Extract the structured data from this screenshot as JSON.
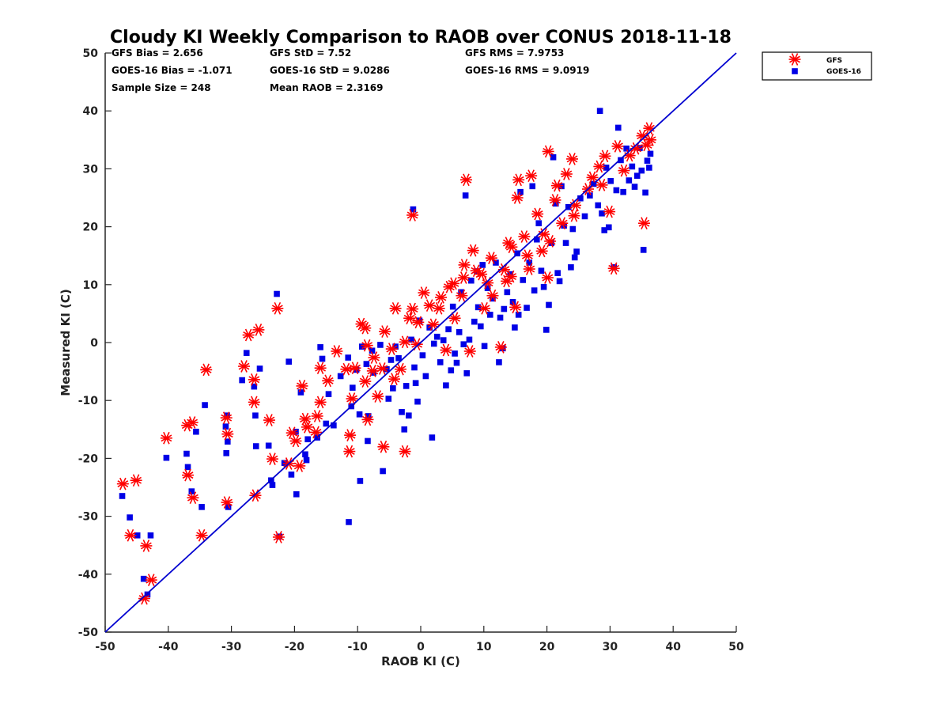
{
  "colors": {
    "gfs": "#ff0000",
    "goes": "#0000e6",
    "line": "#0000d0",
    "axis": "#262626"
  },
  "chart_data": {
    "type": "scatter",
    "title": "Cloudy KI Weekly Comparison to RAOB over CONUS 2018-11-18",
    "xlabel": "RAOB KI (C)",
    "ylabel": "Measured KI (C)",
    "xlim": [
      -50,
      50
    ],
    "ylim": [
      -50,
      50
    ],
    "xticks": [
      "-50",
      "-40",
      "-30",
      "-20",
      "-10",
      "0",
      "10",
      "20",
      "30",
      "40",
      "50"
    ],
    "yticks": [
      "50",
      "40",
      "30",
      "20",
      "10",
      "0",
      "-10",
      "-20",
      "-30",
      "-40",
      "-50"
    ],
    "grid": false,
    "legend_position": "outside-top-right",
    "stats": {
      "gfs_bias": "GFS Bias = 2.656",
      "goes_bias": "GOES-16 Bias = -1.071",
      "sample_size": "Sample Size = 248",
      "gfs_std": "GFS StD = 7.52",
      "goes_std": "GOES-16 StD = 9.0286",
      "mean_raob": "Mean RAOB = 2.3169",
      "gfs_rms": "GFS RMS = 7.9753",
      "goes_rms": "GOES-16 RMS = 9.0919"
    },
    "reference_line": {
      "x": [
        -50,
        50
      ],
      "y": [
        -50,
        50
      ]
    },
    "series": [
      {
        "name": "GFS",
        "marker": "asterisk",
        "points": [
          [
            -47.2,
            -24.4
          ],
          [
            -45.1,
            -23.8
          ],
          [
            -46,
            -33.3
          ],
          [
            -43.5,
            -35.1
          ],
          [
            -43.8,
            -44.2
          ],
          [
            -42.7,
            -41
          ],
          [
            -40.3,
            -16.5
          ],
          [
            -37,
            -14.3
          ],
          [
            -36.2,
            -13.8
          ],
          [
            -36.9,
            -22.9
          ],
          [
            -36.1,
            -26.8
          ],
          [
            -34.7,
            -33.3
          ],
          [
            -34,
            -4.7
          ],
          [
            -30.8,
            -13
          ],
          [
            -30.6,
            -15.8
          ],
          [
            -30.7,
            -27.6
          ],
          [
            -28,
            -4.1
          ],
          [
            -27.3,
            1.3
          ],
          [
            -25.7,
            2.2
          ],
          [
            -26.4,
            -6.4
          ],
          [
            -26.4,
            -10.3
          ],
          [
            -26.2,
            -26.4
          ],
          [
            -24,
            -13.4
          ],
          [
            -23.5,
            -20.1
          ],
          [
            -22.7,
            5.9
          ],
          [
            -22.5,
            -33.6
          ],
          [
            -20.9,
            -20.9
          ],
          [
            -20.4,
            -15.6
          ],
          [
            -19.8,
            -17
          ],
          [
            -19.2,
            -21.3
          ],
          [
            -18.8,
            -7.5
          ],
          [
            -18.3,
            -13.2
          ],
          [
            -18,
            -14.6
          ],
          [
            -16.6,
            -15.5
          ],
          [
            -16.4,
            -12.7
          ],
          [
            -15.9,
            -4.4
          ],
          [
            -15.9,
            -10.3
          ],
          [
            -14.7,
            -6.6
          ],
          [
            -13.3,
            -1.5
          ],
          [
            -11.8,
            -4.6
          ],
          [
            -11.2,
            -16
          ],
          [
            -11.3,
            -18.8
          ],
          [
            -10.9,
            -9.7
          ],
          [
            -10.4,
            -4.4
          ],
          [
            -9.4,
            3.2
          ],
          [
            -8.8,
            2.5
          ],
          [
            -8.5,
            -0.5
          ],
          [
            -8.8,
            -6.7
          ],
          [
            -8.4,
            -13.3
          ],
          [
            -7.6,
            -4.9
          ],
          [
            -7.4,
            -2.6
          ],
          [
            -6.8,
            -9.3
          ],
          [
            -6.1,
            -4.5
          ],
          [
            -5.9,
            -18
          ],
          [
            -5.7,
            1.9
          ],
          [
            -4.6,
            -1.1
          ],
          [
            -4,
            5.9
          ],
          [
            -4.2,
            -6.3
          ],
          [
            -3.2,
            -4.6
          ],
          [
            -2.5,
            -18.8
          ],
          [
            -2.5,
            0.1
          ],
          [
            -1.8,
            4.2
          ],
          [
            -1.3,
            5.8
          ],
          [
            -1.3,
            22
          ],
          [
            -0.6,
            -0.3
          ],
          [
            -0.4,
            3.5
          ],
          [
            0.5,
            8.6
          ],
          [
            1.4,
            6.4
          ],
          [
            2,
            3.1
          ],
          [
            2.9,
            5.9
          ],
          [
            3.2,
            7.8
          ],
          [
            4,
            -1.3
          ],
          [
            4.5,
            9.6
          ],
          [
            5.2,
            10.2
          ],
          [
            5.4,
            4.2
          ],
          [
            6.5,
            8.1
          ],
          [
            6.8,
            11.2
          ],
          [
            6.9,
            13.4
          ],
          [
            7.2,
            28.1
          ],
          [
            7.8,
            -1.5
          ],
          [
            8.3,
            15.9
          ],
          [
            8.8,
            12.4
          ],
          [
            9.6,
            11.8
          ],
          [
            10.1,
            5.9
          ],
          [
            10.6,
            10.3
          ],
          [
            11.2,
            14.6
          ],
          [
            11.4,
            8.1
          ],
          [
            12.7,
            -0.8
          ],
          [
            13.2,
            12.6
          ],
          [
            13.6,
            10.6
          ],
          [
            13.9,
            17.2
          ],
          [
            14.3,
            11.4
          ],
          [
            14.4,
            16.5
          ],
          [
            15,
            6.1
          ],
          [
            15.3,
            25
          ],
          [
            15.5,
            28.1
          ],
          [
            16.4,
            18.3
          ],
          [
            16.9,
            15
          ],
          [
            17.2,
            12.7
          ],
          [
            17.5,
            28.8
          ],
          [
            18.5,
            22.2
          ],
          [
            19.2,
            15.8
          ],
          [
            19.5,
            18.7
          ],
          [
            20.1,
            11.2
          ],
          [
            20.2,
            33
          ],
          [
            20.5,
            17.5
          ],
          [
            21.3,
            24.6
          ],
          [
            21.6,
            27.1
          ],
          [
            22.4,
            20.6
          ],
          [
            23.1,
            29.1
          ],
          [
            24,
            31.7
          ],
          [
            24.3,
            21.9
          ],
          [
            24.5,
            23.7
          ],
          [
            26.5,
            26.5
          ],
          [
            27.2,
            28.5
          ],
          [
            28.3,
            30.4
          ],
          [
            28.7,
            27.2
          ],
          [
            29.2,
            32.2
          ],
          [
            29.9,
            22.6
          ],
          [
            30.6,
            12.8
          ],
          [
            31.2,
            33.9
          ],
          [
            32.2,
            29.7
          ],
          [
            33.1,
            32.3
          ],
          [
            34.1,
            33.5
          ],
          [
            35.1,
            35.7
          ],
          [
            35.4,
            20.6
          ],
          [
            35.8,
            34.1
          ],
          [
            36.2,
            37
          ],
          [
            36.4,
            35
          ]
        ]
      },
      {
        "name": "GOES-16",
        "marker": "square",
        "points": [
          [
            -47.3,
            -26.5
          ],
          [
            -46.1,
            -30.2
          ],
          [
            -44.9,
            -33.3
          ],
          [
            -43.9,
            -40.8
          ],
          [
            -43.3,
            -43.5
          ],
          [
            -42.8,
            -33.3
          ],
          [
            -40.3,
            -19.9
          ],
          [
            -37.1,
            -19.2
          ],
          [
            -36.9,
            -21.5
          ],
          [
            -36.3,
            -25.7
          ],
          [
            -35.6,
            -15.4
          ],
          [
            -34.7,
            -28.4
          ],
          [
            -34.2,
            -10.8
          ],
          [
            -30.9,
            -14.5
          ],
          [
            -30.7,
            -12.6
          ],
          [
            -30.6,
            -17.1
          ],
          [
            -30.8,
            -19.1
          ],
          [
            -30.5,
            -28.4
          ],
          [
            -28.3,
            -6.5
          ],
          [
            -27.6,
            -1.8
          ],
          [
            -26.4,
            -7.6
          ],
          [
            -26.2,
            -12.6
          ],
          [
            -26.1,
            -17.9
          ],
          [
            -25.5,
            -4.5
          ],
          [
            -24.1,
            -17.8
          ],
          [
            -23.7,
            -23.8
          ],
          [
            -23.5,
            -24.6
          ],
          [
            -22.8,
            8.4
          ],
          [
            -22.4,
            -33.5
          ],
          [
            -21.6,
            -20.8
          ],
          [
            -20.9,
            -3.3
          ],
          [
            -20.5,
            -22.8
          ],
          [
            -19.8,
            -15.4
          ],
          [
            -19.7,
            -26.2
          ],
          [
            -19,
            -8.6
          ],
          [
            -18.3,
            -19.3
          ],
          [
            -18.1,
            -20.3
          ],
          [
            -17.9,
            -16.7
          ],
          [
            -16.4,
            -16.4
          ],
          [
            -15.9,
            -0.8
          ],
          [
            -15.6,
            -2.8
          ],
          [
            -15,
            -14
          ],
          [
            -14.6,
            -8.9
          ],
          [
            -13.8,
            -14.3
          ],
          [
            -12.7,
            -5.8
          ],
          [
            -11.5,
            -2.6
          ],
          [
            -11.4,
            -31
          ],
          [
            -11,
            -11
          ],
          [
            -10.8,
            -7.8
          ],
          [
            -10.2,
            -4.7
          ],
          [
            -9.7,
            -12.4
          ],
          [
            -9.6,
            -23.9
          ],
          [
            -9.3,
            -0.7
          ],
          [
            -8.6,
            -3.7
          ],
          [
            -8.4,
            -17
          ],
          [
            -8.3,
            -12.7
          ],
          [
            -7.7,
            -1.4
          ],
          [
            -7.5,
            -5.2
          ],
          [
            -6.4,
            -0.4
          ],
          [
            -6,
            -22.2
          ],
          [
            -5.4,
            -4.6
          ],
          [
            -5.1,
            -9.7
          ],
          [
            -4.7,
            -3
          ],
          [
            -4.4,
            -7.9
          ],
          [
            -4,
            -0.7
          ],
          [
            -3.5,
            -2.7
          ],
          [
            -3,
            -12
          ],
          [
            -2.6,
            -15
          ],
          [
            -2.3,
            -7.5
          ],
          [
            -1.9,
            -12.6
          ],
          [
            -1.5,
            0.5
          ],
          [
            -1.2,
            23
          ],
          [
            -1,
            -4.3
          ],
          [
            -0.8,
            -7
          ],
          [
            -0.5,
            -10.2
          ],
          [
            -0.2,
            3.8
          ],
          [
            0.3,
            -2.2
          ],
          [
            0.8,
            -5.8
          ],
          [
            1.4,
            2.6
          ],
          [
            1.8,
            -16.4
          ],
          [
            2.1,
            -0.2
          ],
          [
            2.6,
            1
          ],
          [
            3.1,
            -3.4
          ],
          [
            3.6,
            0.4
          ],
          [
            4,
            -7.4
          ],
          [
            4.4,
            2.3
          ],
          [
            4.8,
            -4.8
          ],
          [
            5.1,
            6.2
          ],
          [
            5.4,
            -1.9
          ],
          [
            5.7,
            -3.5
          ],
          [
            6.1,
            1.8
          ],
          [
            6.4,
            8.7
          ],
          [
            6.8,
            -0.3
          ],
          [
            7.1,
            25.4
          ],
          [
            7.3,
            -5.3
          ],
          [
            7.7,
            0.5
          ],
          [
            8,
            10.7
          ],
          [
            8.5,
            3.6
          ],
          [
            8.9,
            12.3
          ],
          [
            9.1,
            6.1
          ],
          [
            9.5,
            2.8
          ],
          [
            9.8,
            13.4
          ],
          [
            10.1,
            -0.6
          ],
          [
            10.6,
            9.4
          ],
          [
            11,
            4.8
          ],
          [
            11.4,
            7.6
          ],
          [
            11.9,
            13.8
          ],
          [
            12.4,
            -3.4
          ],
          [
            12.6,
            4.3
          ],
          [
            13,
            -1
          ],
          [
            13.2,
            5.8
          ],
          [
            13.7,
            8.7
          ],
          [
            14.2,
            11.8
          ],
          [
            14.6,
            7
          ],
          [
            14.9,
            2.6
          ],
          [
            15.3,
            15.4
          ],
          [
            15.5,
            4.8
          ],
          [
            15.8,
            26
          ],
          [
            16.2,
            10.8
          ],
          [
            16.8,
            6
          ],
          [
            17.2,
            13.8
          ],
          [
            17.7,
            27
          ],
          [
            18,
            9
          ],
          [
            18.4,
            17.8
          ],
          [
            18.7,
            20.6
          ],
          [
            19.1,
            12.4
          ],
          [
            19.5,
            9.6
          ],
          [
            19.9,
            2.2
          ],
          [
            20.3,
            6.5
          ],
          [
            20.7,
            17.2
          ],
          [
            21,
            32
          ],
          [
            21.4,
            24
          ],
          [
            21.7,
            12
          ],
          [
            22,
            10.6
          ],
          [
            22.3,
            27
          ],
          [
            22.7,
            20.2
          ],
          [
            23,
            17.2
          ],
          [
            23.4,
            23.4
          ],
          [
            23.8,
            13
          ],
          [
            24.1,
            19.6
          ],
          [
            24.4,
            14.7
          ],
          [
            24.7,
            15.7
          ],
          [
            25.3,
            24.9
          ],
          [
            26,
            21.8
          ],
          [
            26.8,
            25.4
          ],
          [
            27.4,
            27.4
          ],
          [
            28.1,
            23.7
          ],
          [
            28.4,
            40
          ],
          [
            28.7,
            22.3
          ],
          [
            29.1,
            19.4
          ],
          [
            29.4,
            30.2
          ],
          [
            29.8,
            19.9
          ],
          [
            30.1,
            27.9
          ],
          [
            30.6,
            13
          ],
          [
            31,
            26.3
          ],
          [
            31.3,
            37.1
          ],
          [
            31.7,
            31.5
          ],
          [
            32.1,
            26
          ],
          [
            32.6,
            33.5
          ],
          [
            33,
            28
          ],
          [
            33.5,
            30.4
          ],
          [
            33.9,
            26.9
          ],
          [
            34.3,
            28.8
          ],
          [
            34.7,
            33.6
          ],
          [
            35,
            29.7
          ],
          [
            35.3,
            16
          ],
          [
            35.6,
            25.9
          ],
          [
            35.9,
            31.4
          ],
          [
            36.2,
            30.2
          ],
          [
            36.4,
            32.6
          ]
        ]
      }
    ]
  }
}
